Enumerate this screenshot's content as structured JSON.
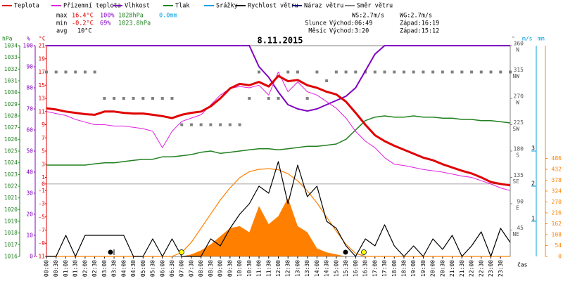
{
  "chart_data": {
    "type": "line",
    "title": "8.11.2015",
    "units": {
      "p": "hPa",
      "rh": "%",
      "t": "°C",
      "dir": "°",
      "ws": "m/s",
      "rad": "mm",
      "time": "čas"
    },
    "stats": {
      "max": {
        "label": "max",
        "t": "16.4°C",
        "rh": "100%",
        "p": "1028hPa",
        "rain": "0.0mm"
      },
      "min": {
        "label": "min",
        "t": "-0.2°C",
        "rh": "69%",
        "p": "1023.8hPa"
      },
      "avg": {
        "label": "avg",
        "t": "10°C"
      }
    },
    "wind": {
      "ws": "WS:2.7m/s",
      "wg": "WG:2.7m/s"
    },
    "sun": {
      "label": "Slunce",
      "rise": "Východ:06:49",
      "set": "Západ:16:19"
    },
    "moon": {
      "label": "Měsíc",
      "rise": "Východ:3:20",
      "set": "Západ:15:12"
    },
    "xlim": [
      0,
      24
    ],
    "x": [
      0,
      0.5,
      1,
      1.5,
      2,
      2.5,
      3,
      3.5,
      4,
      4.5,
      5,
      5.5,
      6,
      6.5,
      7,
      7.5,
      8,
      8.5,
      9,
      9.5,
      10,
      10.5,
      11,
      11.5,
      12,
      12.5,
      13,
      13.5,
      14,
      14.5,
      15,
      15.5,
      16,
      16.5,
      17,
      17.5,
      18,
      18.5,
      19,
      19.5,
      20,
      20.5,
      21,
      21.5,
      22,
      22.5,
      23,
      23.5,
      24
    ],
    "xticks": [
      {
        "value": 0,
        "label": "00:00"
      },
      {
        "value": 0.5,
        "label": "00:30"
      },
      {
        "value": 1,
        "label": "01:00"
      },
      {
        "value": 1.5,
        "label": "01:30"
      },
      {
        "value": 2,
        "label": "02:00"
      },
      {
        "value": 2.5,
        "label": "02:30"
      },
      {
        "value": 3,
        "label": "03:00"
      },
      {
        "value": 3.5,
        "label": "03:30"
      },
      {
        "value": 4,
        "label": "04:00"
      },
      {
        "value": 4.5,
        "label": "04:30"
      },
      {
        "value": 5,
        "label": "05:00"
      },
      {
        "value": 5.5,
        "label": "05:30"
      },
      {
        "value": 6,
        "label": "06:00"
      },
      {
        "value": 6.5,
        "label": "06:30"
      },
      {
        "value": 7,
        "label": "07:00"
      },
      {
        "value": 7.5,
        "label": "07:30"
      },
      {
        "value": 8,
        "label": "08:00"
      },
      {
        "value": 8.5,
        "label": "08:30"
      },
      {
        "value": 9,
        "label": "09:00"
      },
      {
        "value": 9.5,
        "label": "09:30"
      },
      {
        "value": 10,
        "label": "10:00"
      },
      {
        "value": 10.5,
        "label": "10:30"
      },
      {
        "value": 11,
        "label": "11:00"
      },
      {
        "value": 11.5,
        "label": "11:30"
      },
      {
        "value": 12,
        "label": "12:00"
      },
      {
        "value": 12.5,
        "label": "12:30"
      },
      {
        "value": 13,
        "label": "13:00"
      },
      {
        "value": 13.5,
        "label": "13:30"
      },
      {
        "value": 14,
        "label": "14:00"
      },
      {
        "value": 14.5,
        "label": "14:30"
      },
      {
        "value": 15,
        "label": "15:00"
      },
      {
        "value": 15.5,
        "label": "15:30"
      },
      {
        "value": 16,
        "label": "16:00"
      },
      {
        "value": 16.5,
        "label": "16:30"
      },
      {
        "value": 17,
        "label": "17:00"
      },
      {
        "value": 17.5,
        "label": "17:30"
      },
      {
        "value": 18,
        "label": "18:00"
      },
      {
        "value": 18.5,
        "label": "18:30"
      },
      {
        "value": 19,
        "label": "19:00"
      },
      {
        "value": 19.5,
        "label": "19:30"
      },
      {
        "value": 20,
        "label": "20:00"
      },
      {
        "value": 20.5,
        "label": "20:30"
      },
      {
        "value": 21,
        "label": "21:00"
      },
      {
        "value": 21.5,
        "label": "21:30"
      },
      {
        "value": 22,
        "label": "22:00"
      },
      {
        "value": 22.5,
        "label": "22:30"
      },
      {
        "value": 23,
        "label": "23:00"
      },
      {
        "value": 23.5,
        "label": "23:30"
      }
    ],
    "plim": [
      1016,
      1034
    ],
    "pticks": [
      1016,
      1017,
      1018,
      1019,
      1020,
      1021,
      1022,
      1023,
      1024,
      1025,
      1026,
      1027,
      1028,
      1029,
      1030,
      1031,
      1032,
      1033,
      1034
    ],
    "rhlim": [
      0,
      100
    ],
    "rhticks": [
      0,
      10,
      20,
      30,
      40,
      50,
      60,
      70,
      80,
      90,
      100
    ],
    "tlim": [
      -11,
      21
    ],
    "tticks": [
      21,
      19,
      17,
      15,
      13,
      11,
      9,
      7,
      5,
      3,
      1,
      0,
      -1,
      -3,
      -5,
      -7,
      -9,
      -11
    ],
    "dirlim": [
      0,
      360
    ],
    "dirticks": [
      45,
      90,
      135,
      180,
      225,
      270,
      315,
      360
    ],
    "dirnames": [
      "NE",
      "E",
      "SE",
      "S",
      "SW",
      "W",
      "NW",
      "N"
    ],
    "wslim": [
      0,
      6
    ],
    "wsticks": [
      1,
      2,
      3
    ],
    "radlim": [
      0,
      1045
    ],
    "radticks": [
      0,
      54,
      108,
      162,
      216,
      270,
      324,
      378,
      432,
      486
    ],
    "series": [
      {
        "name": "Teplota",
        "color": "#e00000",
        "axis": "t",
        "width": 3,
        "values": [
          11.5,
          11.3,
          11.0,
          10.8,
          10.6,
          10.5,
          11.0,
          11.0,
          10.8,
          10.7,
          10.7,
          10.5,
          10.3,
          10.0,
          10.5,
          10.8,
          11.0,
          11.8,
          13.0,
          14.5,
          15.2,
          15.0,
          15.5,
          14.8,
          16.4,
          15.6,
          15.8,
          15.0,
          14.6,
          14.0,
          13.6,
          12.5,
          10.8,
          9.0,
          7.4,
          6.5,
          5.8,
          5.2,
          4.6,
          4.0,
          3.6,
          3.0,
          2.5,
          2.0,
          1.6,
          1.0,
          0.3,
          0.0,
          -0.2
        ]
      },
      {
        "name": "Přízemní teplota",
        "color": "#e020e0",
        "axis": "t",
        "width": 1,
        "values": [
          11.0,
          10.7,
          10.4,
          9.8,
          9.4,
          9.0,
          9.0,
          8.8,
          8.8,
          8.6,
          8.4,
          8.0,
          5.5,
          8.0,
          9.5,
          10.0,
          10.5,
          12.0,
          13.5,
          14.5,
          14.8,
          14.6,
          15.0,
          13.5,
          17.0,
          14.0,
          15.5,
          14.0,
          13.5,
          12.5,
          11.5,
          10.0,
          8.0,
          6.5,
          5.5,
          4.0,
          3.0,
          2.8,
          2.5,
          2.2,
          2.0,
          1.8,
          1.5,
          1.2,
          1.0,
          0.5,
          0.0,
          -0.6,
          -1.0
        ]
      },
      {
        "name": "Vlhkost",
        "color": "#8000c0",
        "axis": "rh",
        "width": 2,
        "values": [
          100,
          100,
          100,
          100,
          100,
          100,
          100,
          100,
          100,
          100,
          100,
          100,
          100,
          100,
          100,
          100,
          100,
          100,
          100,
          100,
          100,
          100,
          90,
          85,
          78,
          72,
          70,
          69,
          70,
          72,
          74,
          76,
          80,
          88,
          96,
          100,
          100,
          100,
          100,
          100,
          100,
          100,
          100,
          100,
          100,
          100,
          100,
          100,
          100
        ]
      },
      {
        "name": "Tlak",
        "color": "#208020",
        "axis": "p",
        "width": 1.5,
        "values": [
          1023.8,
          1023.8,
          1023.8,
          1023.8,
          1023.8,
          1023.9,
          1024.0,
          1024.0,
          1024.1,
          1024.2,
          1024.3,
          1024.3,
          1024.5,
          1024.5,
          1024.6,
          1024.7,
          1024.9,
          1025.0,
          1024.8,
          1024.9,
          1025.0,
          1025.1,
          1025.2,
          1025.2,
          1025.1,
          1025.2,
          1025.3,
          1025.4,
          1025.4,
          1025.5,
          1025.6,
          1026.0,
          1026.8,
          1027.6,
          1027.9,
          1028.0,
          1027.9,
          1027.9,
          1028.0,
          1027.9,
          1027.9,
          1027.8,
          1027.8,
          1027.7,
          1027.7,
          1027.6,
          1027.6,
          1027.5,
          1027.4
        ]
      },
      {
        "name": "Srážky",
        "color": "#00a0e0"
      },
      {
        "name": "Rychlost větru",
        "color": "#000000",
        "axis": "ws",
        "width": 1.2,
        "values": [
          0,
          0,
          0.6,
          0,
          0.6,
          0.6,
          0.6,
          0.6,
          0.6,
          0,
          0,
          0.5,
          0,
          0.5,
          0,
          0,
          0,
          0.5,
          0.3,
          0.8,
          1.2,
          1.5,
          2.0,
          1.8,
          2.7,
          1.5,
          2.6,
          1.7,
          2.0,
          1.0,
          0.8,
          0.3,
          0,
          0.5,
          0.3,
          0.9,
          0.3,
          0,
          0.3,
          0,
          0.5,
          0.2,
          0.6,
          0,
          0.3,
          0.7,
          0,
          0.8,
          0.4
        ]
      },
      {
        "name": "Náraz větru",
        "color": "#000080"
      },
      {
        "name": "Směr větru",
        "color": "#808080",
        "axis": "dir",
        "points": true,
        "values": [
          315,
          315,
          315,
          315,
          315,
          315,
          270,
          270,
          270,
          270,
          270,
          270,
          270,
          270,
          225,
          225,
          225,
          225,
          225,
          225,
          225,
          270,
          315,
          270,
          270,
          315,
          315,
          270,
          315,
          300,
          315,
          315,
          315,
          315,
          315,
          315,
          315,
          315,
          315,
          315,
          315,
          315,
          315,
          315,
          315,
          315,
          315,
          315,
          315
        ]
      },
      {
        "color": "#ff8000",
        "axis": "rad",
        "fill": true,
        "values": [
          0,
          0,
          0,
          0,
          0,
          0,
          0,
          0,
          0,
          0,
          0,
          0,
          0,
          0,
          0,
          10,
          30,
          60,
          100,
          140,
          150,
          120,
          250,
          160,
          200,
          290,
          150,
          120,
          40,
          20,
          10,
          0,
          0,
          0,
          0,
          0,
          0,
          0,
          0,
          0,
          0,
          0,
          0,
          0,
          0,
          0,
          0,
          0,
          0
        ]
      },
      {
        "color": "#ff8000",
        "axis": "rad",
        "width": 1.2,
        "values": [
          0,
          0,
          0,
          0,
          0,
          0,
          0,
          0,
          0,
          0,
          0,
          0,
          0,
          0,
          20,
          70,
          140,
          210,
          280,
          340,
          390,
          420,
          432,
          435,
          430,
          410,
          375,
          325,
          265,
          195,
          125,
          60,
          15,
          0,
          0,
          0,
          0,
          0,
          0,
          0,
          0,
          0,
          0,
          0,
          0,
          0,
          0,
          0,
          0
        ]
      }
    ]
  }
}
